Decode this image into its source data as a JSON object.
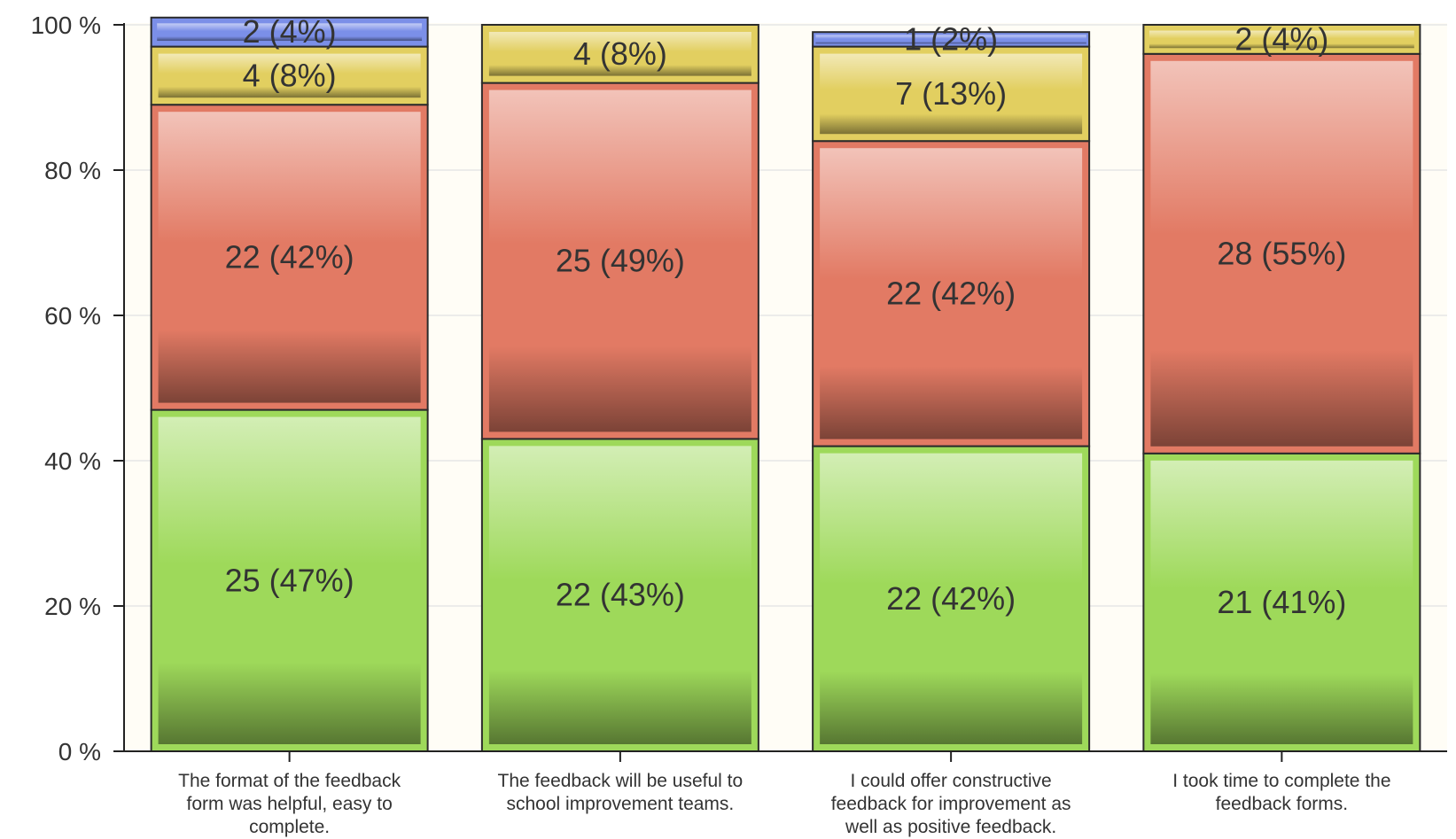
{
  "chart_data": {
    "type": "bar",
    "stacked": true,
    "percent_scale": true,
    "categories": [
      [
        "The format of the feedback",
        "form was helpful, easy to",
        "complete."
      ],
      [
        "The feedback will be useful to",
        "school improvement teams."
      ],
      [
        "I could offer constructive",
        "feedback for improvement as",
        "well as positive feedback."
      ],
      [
        "I took time to complete the",
        "feedback forms."
      ]
    ],
    "series": [
      {
        "color": "#9ed95a",
        "values": [
          47,
          43,
          42,
          41
        ],
        "labels": [
          "25 (47%)",
          "22 (43%)",
          "22 (42%)",
          "21 (41%)"
        ]
      },
      {
        "color": "#e27a64",
        "values": [
          42,
          49,
          42,
          55
        ],
        "labels": [
          "22 (42%)",
          "25 (49%)",
          "22 (42%)",
          "28 (55%)"
        ]
      },
      {
        "color": "#e2cf60",
        "values": [
          8,
          8,
          13,
          4
        ],
        "labels": [
          "4 (8%)",
          "4 (8%)",
          "7 (13%)",
          "2 (4%)"
        ]
      },
      {
        "color": "#7b8fe8",
        "values": [
          4,
          0,
          2,
          0
        ],
        "labels": [
          "2 (4%)",
          "",
          "1 (2%)",
          ""
        ]
      }
    ],
    "ylim": [
      0,
      100
    ],
    "yticks": [
      "0 %",
      "20 %",
      "40 %",
      "60 %",
      "80 %",
      "100 %"
    ],
    "grid": true,
    "legend": "none",
    "title": "",
    "xlabel": "",
    "ylabel": ""
  }
}
